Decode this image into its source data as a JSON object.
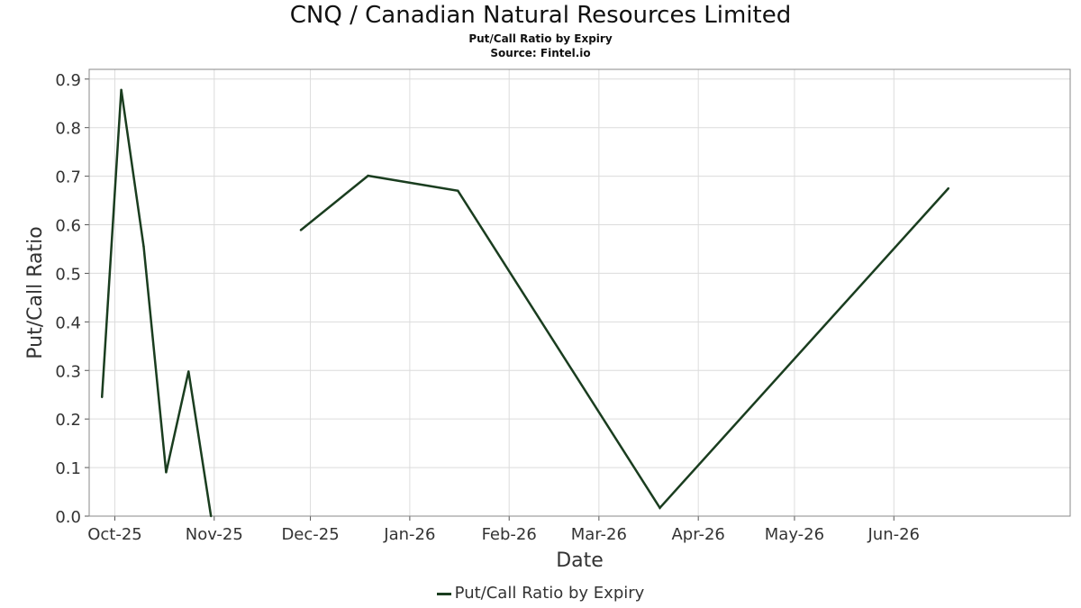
{
  "chart_data": {
    "type": "line",
    "title": "CNQ / Canadian Natural Resources Limited",
    "subtitle": "Put/Call Ratio by Expiry",
    "source": "Source: Fintel.io",
    "xlabel": "Date",
    "ylabel": "Put/Call Ratio",
    "ylim": [
      0,
      0.92
    ],
    "xlim": [
      "2025-09-23",
      "2026-07-26"
    ],
    "yticks": [
      "0.0",
      "0.1",
      "0.2",
      "0.3",
      "0.4",
      "0.5",
      "0.6",
      "0.7",
      "0.8",
      "0.9"
    ],
    "xticks": [
      {
        "label": "Oct-25",
        "date": "2025-10-01"
      },
      {
        "label": "Nov-25",
        "date": "2025-11-01"
      },
      {
        "label": "Dec-25",
        "date": "2025-12-01"
      },
      {
        "label": "Jan-26",
        "date": "2026-01-01"
      },
      {
        "label": "Feb-26",
        "date": "2026-02-01"
      },
      {
        "label": "Mar-26",
        "date": "2026-03-01"
      },
      {
        "label": "Apr-26",
        "date": "2026-04-01"
      },
      {
        "label": "May-26",
        "date": "2026-05-01"
      },
      {
        "label": "Jun-26",
        "date": "2026-06-01"
      }
    ],
    "grid": true,
    "legend_position": "bottom-center",
    "series": [
      {
        "name": "Put/Call Ratio by Expiry",
        "color": "#1a3d1f",
        "segments": [
          [
            {
              "x": "2025-09-27",
              "y": 0.245
            },
            {
              "x": "2025-10-03",
              "y": 0.878
            },
            {
              "x": "2025-10-10",
              "y": 0.555
            },
            {
              "x": "2025-10-17",
              "y": 0.09
            },
            {
              "x": "2025-10-24",
              "y": 0.298
            },
            {
              "x": "2025-10-31",
              "y": 0.0
            }
          ],
          [
            {
              "x": "2025-11-28",
              "y": 0.589
            },
            {
              "x": "2025-12-19",
              "y": 0.701
            },
            {
              "x": "2026-01-16",
              "y": 0.67
            },
            {
              "x": "2026-03-20",
              "y": 0.017
            },
            {
              "x": "2026-06-18",
              "y": 0.675
            }
          ]
        ]
      }
    ]
  }
}
